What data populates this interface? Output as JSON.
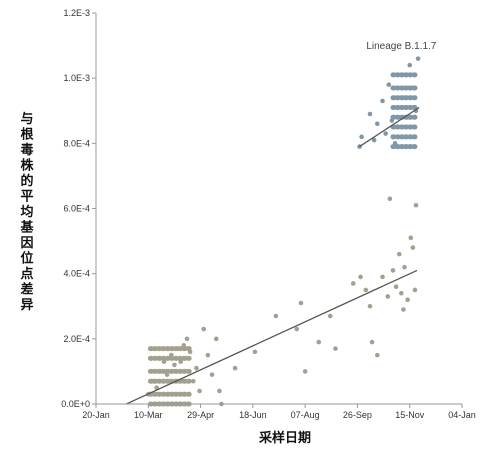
{
  "chart_data": {
    "type": "scatter",
    "title": "",
    "xlabel": "采样日期",
    "ylabel": "与根毒株的平均基因位点差异",
    "x_tick_labels": [
      "20-Jan",
      "10-Mar",
      "29-Apr",
      "18-Jun",
      "07-Aug",
      "26-Sep",
      "15-Nov",
      "04-Jan"
    ],
    "x_ticks": [
      "2020-01-20",
      "2020-03-10",
      "2020-04-29",
      "2020-06-18",
      "2020-08-07",
      "2020-09-26",
      "2020-11-15",
      "2021-01-04"
    ],
    "xlim": [
      "2020-01-20",
      "2021-01-04"
    ],
    "y_tick_labels": [
      "0.0E+0",
      "2.0E-4",
      "4.0E-4",
      "6.0E-4",
      "8.0E-4",
      "1.0E-3",
      "1.2E-3"
    ],
    "y_ticks": [
      0,
      0.0002,
      0.0004,
      0.0006,
      0.0008,
      0.001,
      0.0012
    ],
    "ylim": [
      0,
      0.0012
    ],
    "grid": false,
    "colors": {
      "other": "#a3a18d",
      "b117": "#7f97a6",
      "line": "#555555",
      "axis": "#999999"
    },
    "annotations": [
      {
        "text": "Lineage B.1.1.7",
        "x": "2020-11-07",
        "y": 0.00109
      }
    ],
    "series": [
      {
        "color": "#a3a18d",
        "points": [
          [
            "2020-03-10",
            3e-05
          ],
          [
            "2020-03-14",
            7e-05
          ],
          [
            "2020-03-18",
            5e-05
          ],
          [
            "2020-03-22",
            0.0001
          ],
          [
            "2020-03-25",
            0.00013
          ],
          [
            "2020-03-28",
            9e-05
          ],
          [
            "2020-04-01",
            0.00015
          ],
          [
            "2020-04-04",
            0.00012
          ],
          [
            "2020-04-07",
            0.00017
          ],
          [
            "2020-04-10",
            0.00013
          ],
          [
            "2020-04-13",
            0.00018
          ],
          [
            "2020-04-16",
            0.0002
          ],
          [
            "2020-04-19",
            0.00016
          ],
          [
            "2020-04-22",
            7e-05
          ],
          [
            "2020-04-25",
            0.00011
          ],
          [
            "2020-04-28",
            4e-05
          ],
          [
            "2020-05-02",
            0.00023
          ],
          [
            "2020-05-06",
            0.00015
          ],
          [
            "2020-05-10",
            9e-05
          ],
          [
            "2020-05-14",
            0.0002
          ],
          [
            "2020-05-17",
            4e-05
          ],
          [
            "2020-05-19",
            0.0
          ],
          [
            "2020-06-01",
            0.00011
          ],
          [
            "2020-06-20",
            0.00016
          ],
          [
            "2020-07-10",
            0.00027
          ],
          [
            "2020-07-30",
            0.00023
          ],
          [
            "2020-08-03",
            0.00031
          ],
          [
            "2020-08-07",
            0.0001
          ],
          [
            "2020-08-20",
            0.00019
          ],
          [
            "2020-08-31",
            0.00027
          ],
          [
            "2020-09-05",
            0.00017
          ],
          [
            "2020-09-22",
            0.00037
          ],
          [
            "2020-09-29",
            0.00039
          ],
          [
            "2020-10-04",
            0.00035
          ],
          [
            "2020-10-08",
            0.0003
          ],
          [
            "2020-10-10",
            0.00019
          ],
          [
            "2020-10-15",
            0.00015
          ],
          [
            "2020-10-20",
            0.00039
          ],
          [
            "2020-10-25",
            0.00033
          ],
          [
            "2020-10-27",
            0.00063
          ],
          [
            "2020-10-30",
            0.00041
          ],
          [
            "2020-11-02",
            0.00036
          ],
          [
            "2020-11-05",
            0.00046
          ],
          [
            "2020-11-07",
            0.00034
          ],
          [
            "2020-11-09",
            0.00029
          ],
          [
            "2020-11-10",
            0.00042
          ],
          [
            "2020-11-13",
            0.00032
          ],
          [
            "2020-11-16",
            0.00051
          ],
          [
            "2020-11-18",
            0.00048
          ],
          [
            "2020-11-20",
            0.00035
          ],
          [
            "2020-11-21",
            0.00061
          ]
        ]
      },
      {
        "color": "#7f97a6",
        "points": [
          [
            "2020-09-28",
            0.00079
          ],
          [
            "2020-09-30",
            0.00082
          ],
          [
            "2020-10-08",
            0.00089
          ],
          [
            "2020-10-12",
            0.00081
          ],
          [
            "2020-10-15",
            0.00086
          ],
          [
            "2020-10-20",
            0.00093
          ],
          [
            "2020-10-23",
            0.00083
          ],
          [
            "2020-10-26",
            0.00098
          ],
          [
            "2020-10-29",
            0.00087
          ],
          [
            "2020-11-01",
            0.0008
          ],
          [
            "2020-11-04",
            0.00091
          ],
          [
            "2020-11-07",
            0.00101
          ],
          [
            "2020-11-10",
            0.00094
          ],
          [
            "2020-11-13",
            0.00088
          ],
          [
            "2020-11-15",
            0.00104
          ],
          [
            "2020-11-18",
            0.00097
          ],
          [
            "2020-11-21",
            0.0009
          ],
          [
            "2020-11-23",
            0.00106
          ]
        ]
      }
    ],
    "bands": [
      {
        "series": 0,
        "x_start": "2020-03-12",
        "x_end": "2020-04-19",
        "y_values": [
          0.0,
          3e-05,
          7e-05,
          0.0001,
          0.00014,
          0.00017
        ]
      },
      {
        "series": 1,
        "x_start": "2020-10-30",
        "x_end": "2020-11-22",
        "y_values": [
          0.00079,
          0.00082,
          0.00085,
          0.00088,
          0.00091,
          0.00094,
          0.00097,
          0.00101
        ]
      }
    ],
    "trendlines": [
      {
        "series": 0,
        "x_start": "2020-02-18",
        "y_start": 0.0,
        "x_end": "2020-11-22",
        "y_end": 0.00041
      },
      {
        "series": 1,
        "x_start": "2020-09-28",
        "y_start": 0.00079,
        "x_end": "2020-11-24",
        "y_end": 0.00091
      }
    ]
  }
}
